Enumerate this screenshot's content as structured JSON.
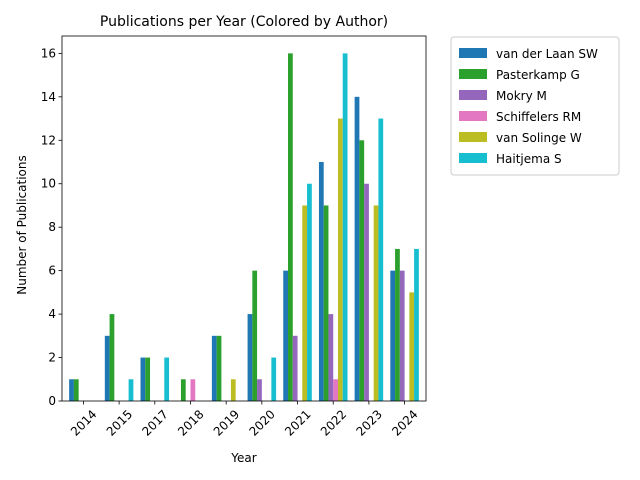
{
  "chart_data": {
    "type": "bar",
    "title": "Publications per Year (Colored by Author)",
    "xlabel": "Year",
    "ylabel": "Number of Publications",
    "categories": [
      "2014",
      "2015",
      "2017",
      "2018",
      "2019",
      "2020",
      "2021",
      "2022",
      "2023",
      "2024"
    ],
    "ylim": [
      0,
      16.8
    ],
    "yticks": [
      0,
      2,
      4,
      6,
      8,
      10,
      12,
      14,
      16
    ],
    "grid": false,
    "legend_position": "outside-top-right",
    "series": [
      {
        "name": "van der Laan SW",
        "color": "#1f77b4",
        "values": [
          1,
          3,
          2,
          0,
          3,
          4,
          6,
          11,
          14,
          6
        ]
      },
      {
        "name": "Pasterkamp G",
        "color": "#2ca02c",
        "values": [
          1,
          4,
          2,
          1,
          3,
          6,
          16,
          9,
          12,
          7
        ]
      },
      {
        "name": "Mokry M",
        "color": "#9467bd",
        "values": [
          0,
          0,
          0,
          0,
          0,
          1,
          3,
          4,
          10,
          6
        ]
      },
      {
        "name": "Schiffelers RM",
        "color": "#e377c2",
        "values": [
          0,
          0,
          0,
          1,
          0,
          0,
          0,
          1,
          0,
          0
        ]
      },
      {
        "name": "van Solinge W",
        "color": "#bcbd22",
        "values": [
          0,
          0,
          0,
          0,
          1,
          0,
          9,
          13,
          9,
          5
        ]
      },
      {
        "name": "Haitjema S",
        "color": "#17becf",
        "values": [
          0,
          1,
          2,
          0,
          0,
          2,
          10,
          16,
          13,
          7
        ]
      }
    ]
  }
}
